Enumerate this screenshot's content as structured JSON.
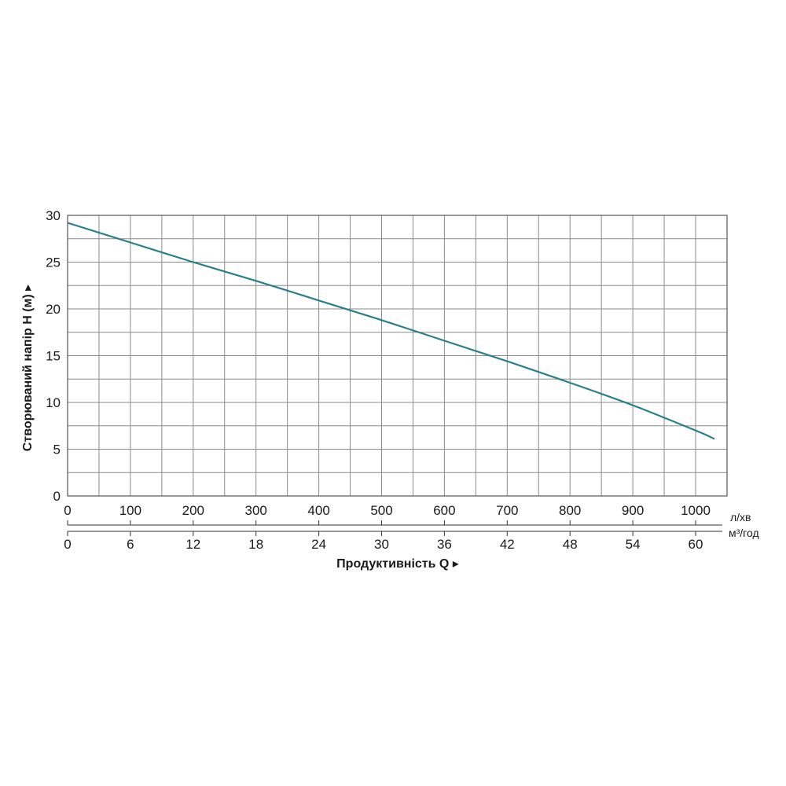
{
  "chart_data": {
    "type": "line",
    "ylabel": "Створюваний напір H (м) ▸",
    "xlabel": "Продуктивність  Q ▸",
    "x_unit_primary": "л/хв",
    "x_unit_secondary": "м³/год",
    "xlim": [
      0,
      1050
    ],
    "ylim": [
      0,
      30
    ],
    "grid": true,
    "x_ticks_primary": [
      "0",
      "100",
      "200",
      "300",
      "400",
      "500",
      "600",
      "700",
      "800",
      "900",
      "1000"
    ],
    "x_ticks_secondary": [
      "0",
      "6",
      "12",
      "18",
      "24",
      "30",
      "36",
      "42",
      "48",
      "54",
      "60"
    ],
    "y_ticks": [
      "0",
      "5",
      "10",
      "15",
      "20",
      "25",
      "30"
    ],
    "series": [
      {
        "color": "#2a7f8c",
        "x": [
          0,
          100,
          200,
          300,
          400,
          500,
          600,
          700,
          800,
          900,
          1000,
          1030
        ],
        "y": [
          29.2,
          27.1,
          25.0,
          23.0,
          20.9,
          18.8,
          16.6,
          14.4,
          12.1,
          9.7,
          7.0,
          6.1
        ]
      }
    ]
  }
}
